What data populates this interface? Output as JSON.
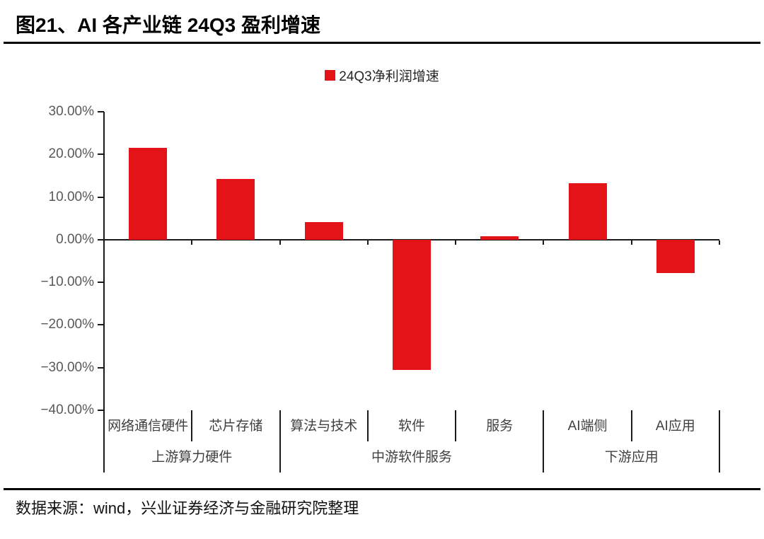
{
  "header": {
    "title": "图21、AI 各产业链 24Q3 盈利增速"
  },
  "legend": {
    "label": "24Q3净利润增速",
    "swatch_color": "#e41318"
  },
  "chart_data": {
    "type": "bar",
    "title": "图21、AI 各产业链 24Q3 盈利增速",
    "legend": [
      "24Q3净利润增速"
    ],
    "legend_position": "top-center",
    "categories": [
      "网络通信硬件",
      "芯片存储",
      "算法与技术",
      "软件",
      "服务",
      "AI端侧",
      "AI应用"
    ],
    "values": [
      21.5,
      14.3,
      4.2,
      -30.6,
      0.8,
      13.2,
      -7.8
    ],
    "unit": "%",
    "groups": [
      {
        "label": "上游算力硬件",
        "start": 0,
        "end": 1
      },
      {
        "label": "中游软件服务",
        "start": 2,
        "end": 4
      },
      {
        "label": "下游应用",
        "start": 5,
        "end": 6
      }
    ],
    "ylim": [
      -40,
      30
    ],
    "ytick_step": 10,
    "yticks": [
      "30.00%",
      "20.00%",
      "10.00%",
      "0.00%",
      "−10.00%",
      "−20.00%",
      "−30.00%",
      "−40.00%"
    ],
    "bar_color": "#e41318",
    "axis_color": "#1a1a1a",
    "grid": false
  },
  "footer": {
    "source": "数据来源：wind，兴业证券经济与金融研究院整理"
  }
}
